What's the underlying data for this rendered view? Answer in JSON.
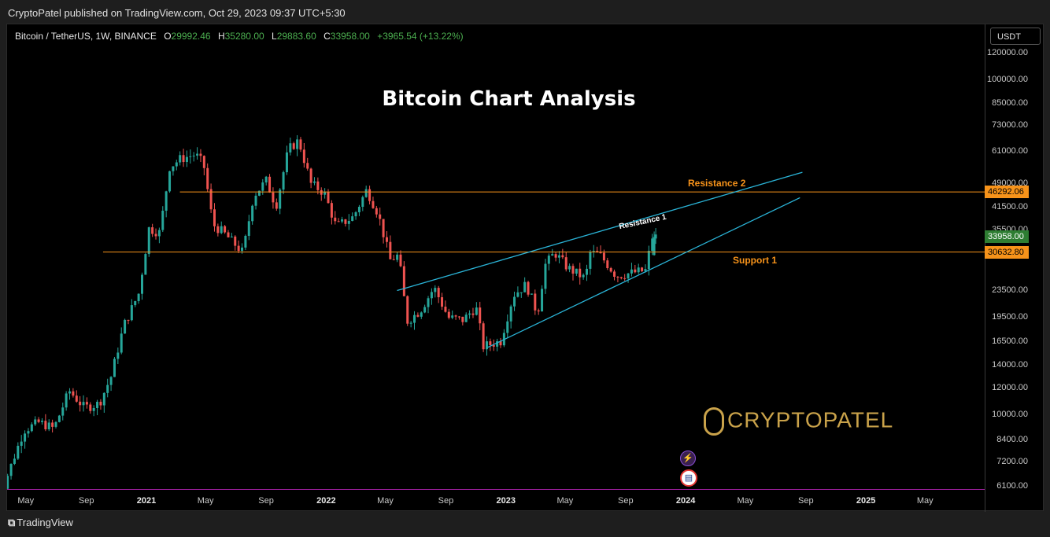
{
  "header": {
    "published": "CryptoPatel published on TradingView.com, Oct 29, 2023 09:37 UTC+5:30"
  },
  "legend": {
    "symbol": "Bitcoin / TetherUS, 1W, BINANCE",
    "o": "29992.46",
    "h": "35280.00",
    "l": "29883.60",
    "c": "33958.00",
    "chg": "+3965.54 (+13.22%)"
  },
  "footer": {
    "brand": "TradingView"
  },
  "watermark": {
    "text": "CRYPTOPATEL"
  },
  "currency": "USDT",
  "colors": {
    "up": "#26a69a",
    "down": "#ef5350",
    "level": "#f7931a",
    "trend": "#2ab3d6"
  },
  "chart_data": {
    "type": "candlestick",
    "title": "Bitcoin Chart Analysis",
    "scale": "log",
    "ylim": [
      6000,
      140000
    ],
    "y_ticks": [
      "120000.00",
      "100000.00",
      "85000.00",
      "73000.00",
      "61000.00",
      "49000.00",
      "41500.00",
      "35500.00",
      "23500.00",
      "19500.00",
      "16500.00",
      "14000.00",
      "12000.00",
      "10000.00",
      "8400.00",
      "7200.00",
      "6100.00"
    ],
    "x_ticks": [
      {
        "label": "May",
        "t": "2020-05-01"
      },
      {
        "label": "Sep",
        "t": "2020-09-01"
      },
      {
        "label": "2021",
        "t": "2021-01-01",
        "bold": true
      },
      {
        "label": "May",
        "t": "2021-05-01"
      },
      {
        "label": "Sep",
        "t": "2021-09-01"
      },
      {
        "label": "2022",
        "t": "2022-01-01",
        "bold": true
      },
      {
        "label": "May",
        "t": "2022-05-01"
      },
      {
        "label": "Sep",
        "t": "2022-09-01"
      },
      {
        "label": "2023",
        "t": "2023-01-01",
        "bold": true
      },
      {
        "label": "May",
        "t": "2023-05-01"
      },
      {
        "label": "Sep",
        "t": "2023-09-01"
      },
      {
        "label": "2024",
        "t": "2024-01-01",
        "bold": true
      },
      {
        "label": "May",
        "t": "2024-05-01"
      },
      {
        "label": "Sep",
        "t": "2024-09-01"
      },
      {
        "label": "2025",
        "t": "2025-01-01",
        "bold": true
      },
      {
        "label": "May",
        "t": "2025-05-01"
      }
    ],
    "price_path": [
      [
        "2020-03-01",
        10000
      ],
      [
        "2020-03-15",
        5800
      ],
      [
        "2020-04-01",
        6800
      ],
      [
        "2020-05-01",
        9000
      ],
      [
        "2020-06-01",
        9500
      ],
      [
        "2020-07-01",
        9100
      ],
      [
        "2020-08-01",
        11800
      ],
      [
        "2020-09-01",
        10500
      ],
      [
        "2020-10-01",
        10800
      ],
      [
        "2020-10-25",
        13000
      ],
      [
        "2020-11-20",
        18500
      ],
      [
        "2020-12-20",
        23000
      ],
      [
        "2021-01-10",
        36000
      ],
      [
        "2021-02-01",
        35000
      ],
      [
        "2021-02-21",
        55000
      ],
      [
        "2021-03-14",
        58000
      ],
      [
        "2021-04-14",
        60000
      ],
      [
        "2021-05-01",
        56000
      ],
      [
        "2021-05-20",
        37000
      ],
      [
        "2021-06-10",
        35000
      ],
      [
        "2021-07-20",
        30500
      ],
      [
        "2021-08-10",
        45000
      ],
      [
        "2021-09-05",
        50000
      ],
      [
        "2021-09-25",
        42000
      ],
      [
        "2021-10-20",
        62000
      ],
      [
        "2021-11-10",
        66000
      ],
      [
        "2021-12-05",
        49000
      ],
      [
        "2022-01-01",
        46000
      ],
      [
        "2022-01-25",
        36500
      ],
      [
        "2022-03-01",
        39000
      ],
      [
        "2022-03-28",
        47000
      ],
      [
        "2022-04-20",
        40000
      ],
      [
        "2022-05-15",
        29000
      ],
      [
        "2022-06-01",
        30000
      ],
      [
        "2022-06-18",
        19000
      ],
      [
        "2022-07-15",
        20500
      ],
      [
        "2022-08-12",
        24000
      ],
      [
        "2022-09-10",
        19500
      ],
      [
        "2022-10-10",
        19200
      ],
      [
        "2022-11-05",
        21000
      ],
      [
        "2022-11-20",
        16000
      ],
      [
        "2022-12-25",
        16600
      ],
      [
        "2023-01-20",
        22800
      ],
      [
        "2023-02-15",
        24500
      ],
      [
        "2023-03-10",
        20000
      ],
      [
        "2023-03-25",
        28000
      ],
      [
        "2023-04-14",
        30500
      ],
      [
        "2023-05-10",
        27500
      ],
      [
        "2023-06-15",
        25500
      ],
      [
        "2023-06-25",
        30500
      ],
      [
        "2023-07-15",
        30000
      ],
      [
        "2023-08-17",
        26000
      ],
      [
        "2023-09-15",
        26500
      ],
      [
        "2023-10-15",
        27000
      ],
      [
        "2023-10-29",
        33958
      ]
    ],
    "horizontal_levels": [
      {
        "label": "Resistance 2",
        "value": 46292.06,
        "price_label": "46292.06"
      },
      {
        "label": "Support 1",
        "value": 30632.8,
        "price_label": "30632.80"
      }
    ],
    "current_price": {
      "value": 33958.0,
      "label": "33958.00"
    },
    "trendlines": [
      {
        "label": "Resistance 1",
        "from": [
          "2022-05-25",
          23500
        ],
        "to": [
          "2024-08-25",
          53000
        ]
      },
      {
        "label": "",
        "from": [
          "2022-11-25",
          15900
        ],
        "to": [
          "2024-08-20",
          44500
        ]
      }
    ]
  }
}
